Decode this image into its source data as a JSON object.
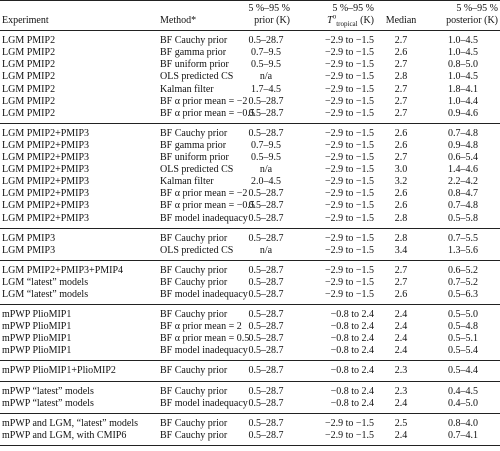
{
  "table": {
    "header": {
      "experiment": "Experiment",
      "method": "Method*",
      "prior": {
        "line1": "5 %–95 %",
        "line2": "prior (K)"
      },
      "tropical": {
        "line1": "5 %–95 %",
        "symbol": "T",
        "sup": "o",
        "sub": "tropical",
        "unit": "(K)"
      },
      "median": "Median",
      "posterior": {
        "line1": "5 %–95 %",
        "line2": "posterior (K)"
      }
    },
    "groups": [
      [
        [
          "LGM PMIP2",
          "BF Cauchy prior",
          "0.5–28.7",
          "−2.9 to −1.5",
          "2.7",
          "1.0–4.5"
        ],
        [
          "LGM PMIP2",
          "BF gamma prior",
          "0.7–9.5",
          "−2.9 to −1.5",
          "2.6",
          "1.0–4.5"
        ],
        [
          "LGM PMIP2",
          "BF uniform prior",
          "0.5–9.5",
          "−2.9 to −1.5",
          "2.7",
          "0.8–5.0"
        ],
        [
          "LGM PMIP2",
          "OLS predicted CS",
          "n/a",
          "−2.9 to −1.5",
          "2.8",
          "1.0–4.5"
        ],
        [
          "LGM PMIP2",
          "Kalman filter",
          "1.7–4.5",
          "−2.9 to −1.5",
          "2.7",
          "1.8–4.1"
        ],
        [
          "LGM PMIP2",
          "BF α prior mean = −2",
          "0.5–28.7",
          "−2.9 to −1.5",
          "2.7",
          "1.0–4.4"
        ],
        [
          "LGM PMIP2",
          "BF α prior mean = −0.5",
          "0.5–28.7",
          "−2.9 to −1.5",
          "2.7",
          "0.9–4.6"
        ]
      ],
      [
        [
          "LGM PMIP2+PMIP3",
          "BF Cauchy prior",
          "0.5–28.7",
          "−2.9 to −1.5",
          "2.6",
          "0.7–4.8"
        ],
        [
          "LGM PMIP2+PMIP3",
          "BF gamma prior",
          "0.7–9.5",
          "−2.9 to −1.5",
          "2.6",
          "0.9–4.8"
        ],
        [
          "LGM PMIP2+PMIP3",
          "BF uniform prior",
          "0.5–9.5",
          "−2.9 to −1.5",
          "2.7",
          "0.6–5.4"
        ],
        [
          "LGM PMIP2+PMIP3",
          "OLS predicted CS",
          "n/a",
          "−2.9 to −1.5",
          "3.0",
          "1.4–4.6"
        ],
        [
          "LGM PMIP2+PMIP3",
          "Kalman filter",
          "2.0–4.5",
          "−2.9 to −1.5",
          "3.2",
          "2.2–4.2"
        ],
        [
          "LGM PMIP2+PMIP3",
          "BF α prior mean = −2",
          "0.5–28.7",
          "−2.9 to −1.5",
          "2.6",
          "0.8–4.7"
        ],
        [
          "LGM PMIP2+PMIP3",
          "BF α prior mean = −0.5",
          "0.5–28.7",
          "−2.9 to −1.5",
          "2.6",
          "0.7–4.8"
        ],
        [
          "LGM PMIP2+PMIP3",
          "BF model inadequacy",
          "0.5–28.7",
          "−2.9 to −1.5",
          "2.8",
          "0.5–5.8"
        ]
      ],
      [
        [
          "LGM PMIP3",
          "BF Cauchy prior",
          "0.5–28.7",
          "−2.9 to −1.5",
          "2.8",
          "0.7–5.5"
        ],
        [
          "LGM PMIP3",
          "OLS predicted CS",
          "n/a",
          "−2.9 to −1.5",
          "3.4",
          "1.3–5.6"
        ]
      ],
      [
        [
          "LGM PMIP2+PMIP3+PMIP4",
          "BF Cauchy prior",
          "0.5–28.7",
          "−2.9 to −1.5",
          "2.7",
          "0.6–5.2"
        ],
        [
          "LGM “latest” models",
          "BF Cauchy prior",
          "0.5–28.7",
          "−2.9 to −1.5",
          "2.7",
          "0.7–5.2"
        ],
        [
          "LGM “latest” models",
          "BF model inadequacy",
          "0.5–28.7",
          "−2.9 to −1.5",
          "2.6",
          "0.5–6.3"
        ]
      ],
      [
        [
          "mPWP PlioMIP1",
          "BF Cauchy prior",
          "0.5–28.7",
          "−0.8 to 2.4",
          "2.4",
          "0.5–5.0"
        ],
        [
          "mPWP PlioMIP1",
          "BF α prior mean = 2",
          "0.5–28.7",
          "−0.8 to 2.4",
          "2.4",
          "0.5–4.8"
        ],
        [
          "mPWP PlioMIP1",
          "BF α prior mean = 0.5",
          "0.5–28.7",
          "−0.8 to 2.4",
          "2.4",
          "0.5–5.1"
        ],
        [
          "mPWP PlioMIP1",
          "BF model inadequacy",
          "0.5–28.7",
          "−0.8 to 2.4",
          "2.4",
          "0.5–5.4"
        ]
      ],
      [
        [
          "mPWP PlioMIP1+PlioMIP2",
          "BF Cauchy prior",
          "0.5–28.7",
          "−0.8 to 2.4",
          "2.3",
          "0.5–4.4"
        ]
      ],
      [
        [
          "mPWP “latest” models",
          "BF Cauchy prior",
          "0.5–28.7",
          "−0.8 to 2.4",
          "2.3",
          "0.4–4.5"
        ],
        [
          "mPWP “latest” models",
          "BF model inadequacy",
          "0.5–28.7",
          "−0.8 to 2.4",
          "2.4",
          "0.4–5.0"
        ]
      ],
      [
        [
          "mPWP and LGM, “latest” models",
          "BF Cauchy prior",
          "0.5–28.7",
          "−2.9 to −1.5",
          "2.5",
          "0.8–4.0"
        ],
        [
          "mPWP and LGM, with CMIP6",
          "BF Cauchy prior",
          "0.5–28.7",
          "−2.9 to −1.5",
          "2.4",
          "0.7–4.1"
        ]
      ]
    ]
  }
}
